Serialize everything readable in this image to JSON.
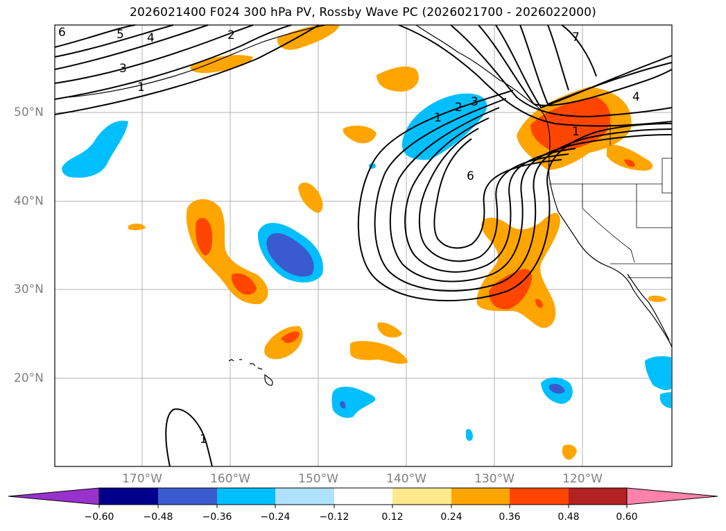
{
  "title": "2026021400 F024 300 hPa PV, Rossby Wave PC (2026021700 - 2026022000)",
  "map": {
    "lat_labels": [
      "50°N",
      "40°N",
      "30°N",
      "20°N"
    ],
    "lon_labels": [
      "170°W",
      "160°W",
      "150°W",
      "140°W",
      "130°W",
      "120°W"
    ],
    "contour_labels": [
      "6",
      "5",
      "4",
      "3",
      "1",
      "2",
      "7",
      "1",
      "2",
      "3",
      "4",
      "1",
      "6",
      "1"
    ],
    "colors": {
      "c_m060": "#9932cc",
      "c_m048": "#00008b",
      "c_m036": "#3a5bcf",
      "c_m024": "#00bfff",
      "c_m012": "#b0e2ff",
      "c_zero": "#ffffff",
      "c_p012": "#ffe98c",
      "c_p024": "#ffa500",
      "c_p036": "#ff4500",
      "c_p048": "#b22222",
      "c_p060": "#ff82ab",
      "grid": "#b0b0b0",
      "label": "#808080"
    }
  },
  "colorbar": {
    "ticks": [
      "−0.60",
      "−0.48",
      "−0.36",
      "−0.24",
      "−0.12",
      "0.12",
      "0.24",
      "0.36",
      "0.48",
      "0.60"
    ]
  }
}
